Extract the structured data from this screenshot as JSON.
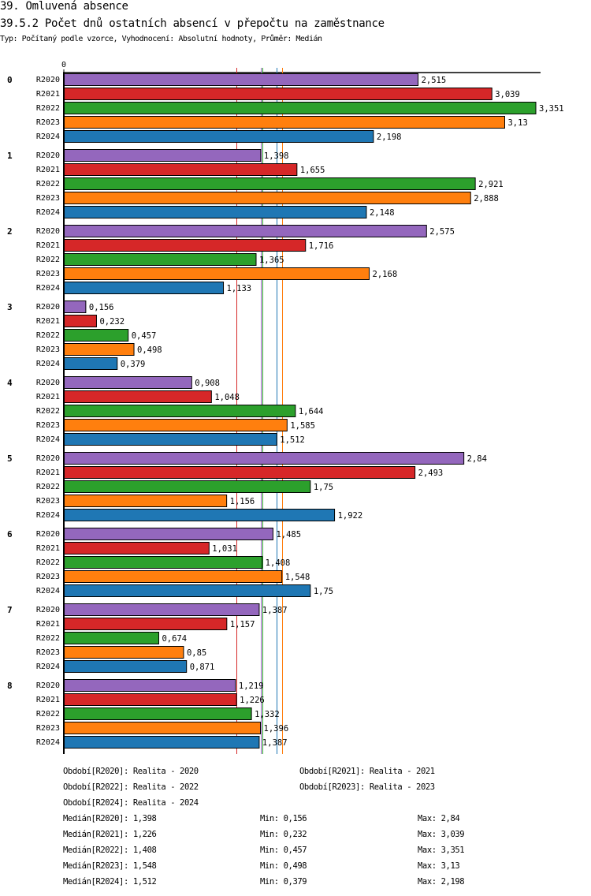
{
  "header": {
    "title": "39. Omluvená absence",
    "subtitle": "39.5.2 Počet dnů ostatních absencí v přepočtu na zaměstnance",
    "info": "Typ: Počítaný podle vzorce, Vyhodnocení: Absolutní hodnoty, Průměr: Medián"
  },
  "chart_data": {
    "type": "bar",
    "orientation": "horizontal",
    "title": "39.5.2 Počet dnů ostatních absencí v přepočtu na zaměstnance",
    "xlabel": "",
    "ylabel": "",
    "x_tick_labels": [
      "0"
    ],
    "xlim": [
      0,
      3.351
    ],
    "categories": [
      "0",
      "1",
      "2",
      "3",
      "4",
      "5",
      "6",
      "7",
      "8"
    ],
    "series": [
      {
        "name": "R2020",
        "color": "#9467bd",
        "values": [
          2.515,
          1.398,
          2.575,
          0.156,
          0.908,
          2.84,
          1.485,
          1.387,
          1.219
        ],
        "labels": [
          "2,515",
          "1,398",
          "2,575",
          "0,156",
          "0,908",
          "2,84",
          "1,485",
          "1,387",
          "1,219"
        ]
      },
      {
        "name": "R2021",
        "color": "#d62728",
        "values": [
          3.039,
          1.655,
          1.716,
          0.232,
          1.048,
          2.493,
          1.031,
          1.157,
          1.226
        ],
        "labels": [
          "3,039",
          "1,655",
          "1,716",
          "0,232",
          "1,048",
          "2,493",
          "1,031",
          "1,157",
          "1,226"
        ]
      },
      {
        "name": "R2022",
        "color": "#2ca02c",
        "values": [
          3.351,
          2.921,
          1.365,
          0.457,
          1.644,
          1.75,
          1.408,
          0.674,
          1.332
        ],
        "labels": [
          "3,351",
          "2,921",
          "1,365",
          "0,457",
          "1,644",
          "1,75",
          "1,408",
          "0,674",
          "1,332"
        ]
      },
      {
        "name": "R2023",
        "color": "#ff7f0e",
        "values": [
          3.13,
          2.888,
          2.168,
          0.498,
          1.585,
          1.156,
          1.548,
          0.85,
          1.396
        ],
        "labels": [
          "3,13",
          "2,888",
          "2,168",
          "0,498",
          "1,585",
          "1,156",
          "1,548",
          "0,85",
          "1,396"
        ]
      },
      {
        "name": "R2024",
        "color": "#1f77b4",
        "values": [
          2.198,
          2.148,
          1.133,
          0.379,
          1.512,
          1.922,
          1.75,
          0.871,
          1.387
        ],
        "labels": [
          "2,198",
          "2,148",
          "1,133",
          "0,379",
          "1,512",
          "1,922",
          "1,75",
          "0,871",
          "1,387"
        ]
      }
    ],
    "median_lines": [
      {
        "series": "R2020",
        "value": 1.398,
        "color": "#9467bd"
      },
      {
        "series": "R2021",
        "value": 1.226,
        "color": "#d62728"
      },
      {
        "series": "R2022",
        "value": 1.408,
        "color": "#2ca02c"
      },
      {
        "series": "R2023",
        "value": 1.548,
        "color": "#ff7f0e"
      },
      {
        "series": "R2024",
        "value": 1.512,
        "color": "#1f77b4"
      }
    ],
    "grid": false,
    "legend": "bottom"
  },
  "legend": {
    "periods": [
      "Období[R2020]: Realita - 2020",
      "Období[R2021]: Realita - 2021",
      "Období[R2022]: Realita - 2022",
      "Období[R2023]: Realita - 2023",
      "Období[R2024]: Realita - 2024"
    ],
    "stats": [
      {
        "median": "Medián[R2020]: 1,398",
        "min": "Min: 0,156",
        "max": "Max: 2,84"
      },
      {
        "median": "Medián[R2021]: 1,226",
        "min": "Min: 0,232",
        "max": "Max: 3,039"
      },
      {
        "median": "Medián[R2022]: 1,408",
        "min": "Min: 0,457",
        "max": "Max: 3,351"
      },
      {
        "median": "Medián[R2023]: 1,548",
        "min": "Min: 0,498",
        "max": "Max: 3,13"
      },
      {
        "median": "Medián[R2024]: 1,512",
        "min": "Min: 0,379",
        "max": "Max: 2,198"
      }
    ]
  }
}
